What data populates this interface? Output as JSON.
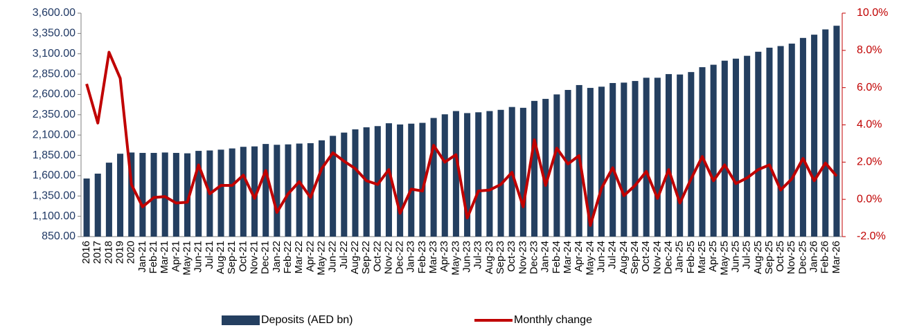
{
  "chart_data": {
    "type": "bar-line",
    "categories": [
      "2016",
      "2017",
      "2018",
      "2019",
      "2020",
      "Jan-21",
      "Feb-21",
      "Mar-21",
      "Apr-21",
      "May-21",
      "Jun-21",
      "Jul-21",
      "Aug-21",
      "Sep-21",
      "Oct-21",
      "Nov-21",
      "Dec-21",
      "Jan-22",
      "Feb-22",
      "Mar-22",
      "Apr-22",
      "May-22",
      "Jun-22",
      "Jul-22",
      "Aug-22",
      "Sep-22",
      "Oct-22",
      "Nov-22",
      "Dec-22",
      "Jan-23",
      "Feb-23",
      "Mar-23",
      "Apr-23",
      "May-23",
      "Jun-23",
      "Jul-23",
      "Aug-23",
      "Sep-23",
      "Oct-23",
      "Nov-23",
      "Dec-23",
      "Jan-24",
      "Feb-24",
      "Mar-24",
      "Apr-24",
      "May-24",
      "Jun-24",
      "Jul-24",
      "Aug-24",
      "Sep-24",
      "Oct-24",
      "Nov-24",
      "Dec-24",
      "Jan-25",
      "Feb-25",
      "Mar-25",
      "Apr-25",
      "May-25",
      "Jun-25",
      "Jul-25",
      "Aug-25",
      "Sep-25",
      "Oct-25",
      "Nov-25",
      "Dec-25",
      "Jan-26",
      "Feb-26",
      "Mar-26"
    ],
    "series": [
      {
        "name": "Deposits (AED bn)",
        "type": "bar",
        "color": "#243f60",
        "values": [
          1565,
          1625,
          1760,
          1870,
          1885,
          1880,
          1880,
          1885,
          1880,
          1875,
          1905,
          1910,
          1920,
          1935,
          1955,
          1960,
          1990,
          1980,
          1985,
          1995,
          2000,
          2035,
          2090,
          2130,
          2170,
          2195,
          2210,
          2245,
          2230,
          2240,
          2250,
          2310,
          2355,
          2395,
          2370,
          2380,
          2395,
          2410,
          2445,
          2435,
          2520,
          2545,
          2600,
          2655,
          2715,
          2680,
          2695,
          2740,
          2745,
          2765,
          2805,
          2805,
          2850,
          2845,
          2875,
          2935,
          2965,
          3015,
          3040,
          3075,
          3125,
          3175,
          3195,
          3225,
          3295,
          3335,
          3400,
          3445
        ]
      },
      {
        "name": "Monthly change",
        "type": "line",
        "axis": "y2",
        "color": "#c00000",
        "values": [
          6.2,
          4.1,
          7.9,
          6.5,
          0.8,
          -0.4,
          0.1,
          0.15,
          -0.2,
          -0.15,
          1.85,
          0.3,
          0.75,
          0.75,
          1.3,
          0.05,
          1.55,
          -0.7,
          0.3,
          0.95,
          0.1,
          1.65,
          2.5,
          2.05,
          1.65,
          1.0,
          0.8,
          1.6,
          -0.75,
          0.55,
          0.45,
          2.9,
          2.0,
          2.4,
          -1.0,
          0.45,
          0.5,
          0.8,
          1.45,
          -0.4,
          3.2,
          0.75,
          2.75,
          1.9,
          2.35,
          -1.4,
          0.6,
          1.7,
          0.2,
          0.75,
          1.5,
          0.05,
          1.6,
          -0.2,
          1.1,
          2.3,
          1.0,
          1.85,
          0.85,
          1.15,
          1.6,
          1.85,
          0.5,
          1.1,
          2.2,
          1.0,
          1.95,
          1.25
        ]
      }
    ],
    "ylim": [
      850,
      3600
    ],
    "yticks": [
      {
        "value": 850,
        "label": "850.00"
      },
      {
        "value": 1100,
        "label": "1,100.00"
      },
      {
        "value": 1350,
        "label": "1,350.00"
      },
      {
        "value": 1600,
        "label": "1,600.00"
      },
      {
        "value": 1850,
        "label": "1,850.00"
      },
      {
        "value": 2100,
        "label": "2,100.00"
      },
      {
        "value": 2350,
        "label": "2,350.00"
      },
      {
        "value": 2600,
        "label": "2,600.00"
      },
      {
        "value": 2850,
        "label": "2,850.00"
      },
      {
        "value": 3100,
        "label": "3,100.00"
      },
      {
        "value": 3350,
        "label": "3,350.00"
      },
      {
        "value": 3600,
        "label": "3,600.00"
      }
    ],
    "y2lim": [
      -2,
      10
    ],
    "y2ticks": [
      {
        "value": -2,
        "label": "-2.0%"
      },
      {
        "value": 0,
        "label": "0.0%"
      },
      {
        "value": 2,
        "label": "2.0%"
      },
      {
        "value": 4,
        "label": "4.0%"
      },
      {
        "value": 6,
        "label": "6.0%"
      },
      {
        "value": 8,
        "label": "8.0%"
      },
      {
        "value": 10,
        "label": "10.0%"
      }
    ],
    "legend": "bottom"
  }
}
